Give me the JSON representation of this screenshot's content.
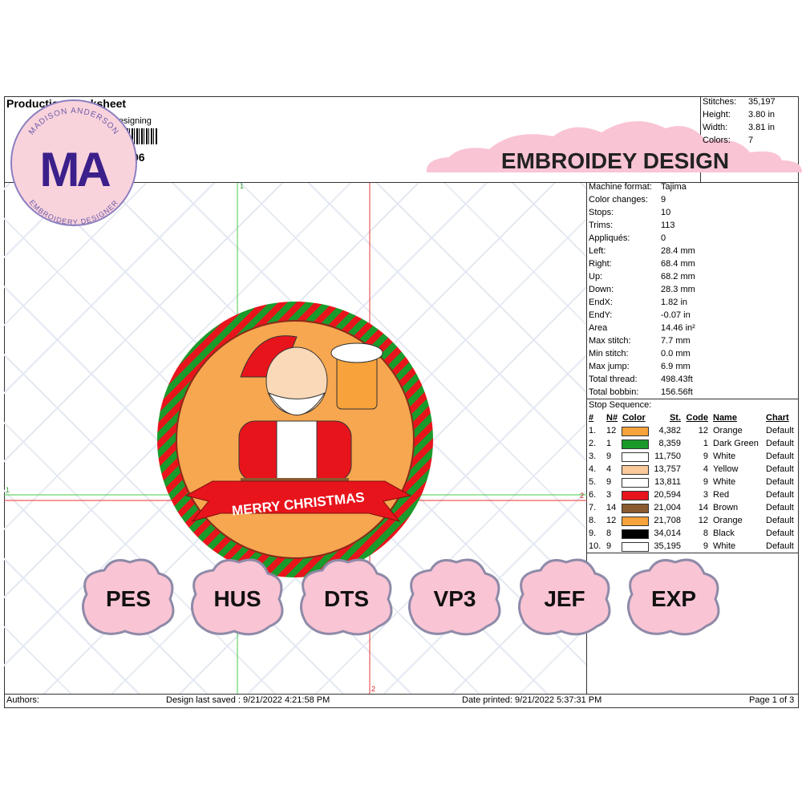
{
  "header": {
    "title": "Production Worksheet",
    "subtitle": "Designing",
    "id_fragment": "06"
  },
  "summary": [
    {
      "label": "Stitches:",
      "value": "35,197"
    },
    {
      "label": "Height:",
      "value": "3.80 in"
    },
    {
      "label": "Width:",
      "value": "3.81 in"
    },
    {
      "label": "Colors:",
      "value": "7"
    }
  ],
  "logo": {
    "initials": "MA",
    "top_text": "MADISON ANDERSON",
    "bottom_text": "EMBROIDERY DESIGNER"
  },
  "banner": "EMBROIDEY DESIGN",
  "guides": {
    "v1": "1",
    "h1": "1",
    "h2": "2",
    "v2": "2"
  },
  "design_text": "MERRY CHRISTMAS",
  "machine_info": [
    {
      "label": "Machine format:",
      "value": "Tajima"
    },
    {
      "label": "Color changes:",
      "value": "9"
    },
    {
      "label": "Stops:",
      "value": "10"
    },
    {
      "label": "Trims:",
      "value": "113"
    },
    {
      "label": "Appliqués:",
      "value": "0"
    },
    {
      "label": "Left:",
      "value": "28.4 mm"
    },
    {
      "label": "Right:",
      "value": "68.4 mm"
    },
    {
      "label": "Up:",
      "value": "68.2 mm"
    },
    {
      "label": "Down:",
      "value": "28.3 mm"
    },
    {
      "label": "EndX:",
      "value": "1.82 in"
    },
    {
      "label": "EndY:",
      "value": "-0.07 in"
    },
    {
      "label": "Area",
      "value": "14.46 in²"
    },
    {
      "label": "Max stitch:",
      "value": "7.7 mm"
    },
    {
      "label": "Min stitch:",
      "value": "0.0 mm"
    },
    {
      "label": "Max jump:",
      "value": "6.9 mm"
    },
    {
      "label": "Total thread:",
      "value": "498.43ft"
    },
    {
      "label": "Total bobbin:",
      "value": "156.56ft"
    }
  ],
  "stop_sequence": {
    "title": "Stop Sequence:",
    "columns": [
      "#",
      "N#",
      "Color",
      "St.",
      "Code",
      "Name",
      "Chart"
    ],
    "rows": [
      [
        "1.",
        "12",
        "#f7a23a",
        "4,382",
        "12",
        "Orange",
        "Default"
      ],
      [
        "2.",
        "1",
        "#1a9a2a",
        "8,359",
        "1",
        "Dark Green",
        "Default"
      ],
      [
        "3.",
        "9",
        "#ffffff",
        "11,750",
        "9",
        "White",
        "Default"
      ],
      [
        "4.",
        "4",
        "#f9c99a",
        "13,757",
        "4",
        "Yellow",
        "Default"
      ],
      [
        "5.",
        "9",
        "#ffffff",
        "13,811",
        "9",
        "White",
        "Default"
      ],
      [
        "6.",
        "3",
        "#e8141c",
        "20,594",
        "3",
        "Red",
        "Default"
      ],
      [
        "7.",
        "14",
        "#8a5a30",
        "21,004",
        "14",
        "Brown",
        "Default"
      ],
      [
        "8.",
        "12",
        "#f7a23a",
        "21,708",
        "12",
        "Orange",
        "Default"
      ],
      [
        "9.",
        "8",
        "#000000",
        "34,014",
        "8",
        "Black",
        "Default"
      ],
      [
        "10.",
        "9",
        "#ffffff",
        "35,195",
        "9",
        "White",
        "Default"
      ]
    ]
  },
  "formats": [
    "PES",
    "HUS",
    "DTS",
    "VP3",
    "JEF",
    "EXP"
  ],
  "footer": {
    "authors": "Authors:",
    "saved": "Design last saved : 9/21/2022 4:21:58 PM",
    "printed": "Date printed: 9/21/2022 5:37:31 PM",
    "page": "Page 1 of 3"
  }
}
